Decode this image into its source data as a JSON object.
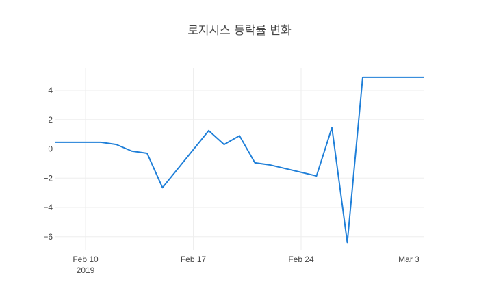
{
  "chart_data": {
    "type": "line",
    "title": "로지시스 등락률 변화",
    "xlabel": "",
    "ylabel": "",
    "xlim": [
      "2019-02-08",
      "2019-03-04"
    ],
    "ylim": [
      -6.9,
      5.5
    ],
    "grid": true,
    "legend": "none",
    "x_ticks": [
      {
        "date": "2019-02-10",
        "label": "Feb 10",
        "sublabel": "2019"
      },
      {
        "date": "2019-02-17",
        "label": "Feb 17",
        "sublabel": ""
      },
      {
        "date": "2019-02-24",
        "label": "Feb 24",
        "sublabel": ""
      },
      {
        "date": "2019-03-03",
        "label": "Mar 3",
        "sublabel": ""
      }
    ],
    "y_ticks": [
      4,
      2,
      0,
      -2,
      -4,
      -6
    ],
    "series": [
      {
        "color": "#1f7fd8",
        "x": [
          "2019-02-08",
          "2019-02-11",
          "2019-02-12",
          "2019-02-13",
          "2019-02-14",
          "2019-02-15",
          "2019-02-18",
          "2019-02-19",
          "2019-02-20",
          "2019-02-21",
          "2019-02-22",
          "2019-02-25",
          "2019-02-26",
          "2019-02-27",
          "2019-02-28",
          "2019-03-04"
        ],
        "values": [
          0.45,
          0.45,
          0.3,
          -0.15,
          -0.3,
          -2.65,
          1.25,
          0.3,
          0.9,
          -0.95,
          -1.1,
          -1.85,
          1.45,
          -6.4,
          4.9,
          4.9
        ]
      }
    ]
  }
}
